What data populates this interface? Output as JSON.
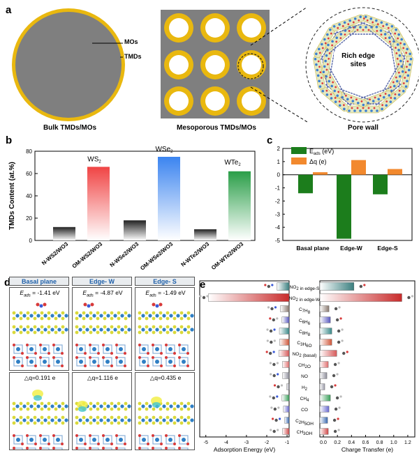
{
  "panel_a": {
    "label": "a",
    "bulk_label_mos": "MOs",
    "bulk_label_tmds": "TMDs",
    "caption_bulk": "Bulk TMDs/MOs",
    "caption_meso": "Mesoporous TMDs/MOs",
    "caption_pore": "Pore wall",
    "rich_edge_text": "Rich edge sites",
    "colors": {
      "gold": "#e9b80f",
      "gray": "#7f7f7f"
    }
  },
  "panel_b": {
    "label": "b",
    "chart_data": {
      "type": "bar",
      "ylabel": "TMDs Content (at.%)",
      "ylim": [
        0,
        80
      ],
      "yticks": [
        "0",
        "20",
        "40",
        "60",
        "80"
      ],
      "categories": [
        "N-WS2/WO3",
        "OM-WS2/WO3",
        "N-WSe2/WO3",
        "OM-WSe2/WO3",
        "N-WTe2/WO3",
        "OM-WTe2/WO3"
      ],
      "values": [
        12,
        66,
        18,
        75,
        10,
        62
      ],
      "group_labels": [
        "WS2",
        "WSe2",
        "WTe2"
      ],
      "bar_colors": [
        "#222222",
        "#f04444",
        "#222222",
        "#3b84f0",
        "#222222",
        "#2a9e48"
      ]
    }
  },
  "panel_c": {
    "label": "c",
    "chart_data": {
      "type": "bar",
      "categories": [
        "Basal plane",
        "Edge-W",
        "Edge-S"
      ],
      "series": [
        {
          "name": "Eads (eV)",
          "values": [
            -1.41,
            -4.87,
            -1.49
          ],
          "color": "#1c7d1c"
        },
        {
          "name": "Δq (e)",
          "values": [
            0.191,
            1.116,
            0.435
          ],
          "color": "#f2892e"
        }
      ],
      "ylim": [
        -5,
        2
      ],
      "yticks": [
        "2",
        "1",
        "0",
        "-1",
        "-2",
        "-3",
        "-4",
        "-5"
      ]
    }
  },
  "panel_d": {
    "label": "d",
    "columns": [
      "Basal plane",
      "Edge- W",
      "Edge- S"
    ],
    "eads_prefix": "E",
    "eads_sub": "ads",
    "eads": [
      "= -1.41 eV",
      "= -4.87 eV",
      "= -1.49 eV"
    ],
    "dq": [
      "△q=0.191 e",
      "△q=1.116 e",
      "△q=0.435 e"
    ]
  },
  "panel_e": {
    "label": "e",
    "chart_data": {
      "type": "bar",
      "orientation": "horizontal",
      "categories": [
        "NO2 in edge-S",
        "NO2 in edge-W",
        "C7H8",
        "C6H6",
        "C8H8",
        "C3H6O",
        "NO2 (basal)",
        "CH2O",
        "NO",
        "H2",
        "CH4",
        "CO",
        "C2H5OH",
        "CH3OH"
      ],
      "series": [
        {
          "name": "Adsorption Energy (eV)",
          "values": [
            -1.49,
            -4.87,
            -1.33,
            -1.25,
            -1.38,
            -1.37,
            -1.41,
            -1.23,
            -1.22,
            -1.02,
            -1.25,
            -1.18,
            -1.12,
            -1.22
          ]
        },
        {
          "name": "Charge Transfer (e)",
          "values": [
            0.435,
            1.116,
            0.08,
            0.1,
            0.12,
            0.12,
            0.191,
            0.07,
            0.05,
            0.02,
            0.1,
            0.08,
            0.06,
            0.07
          ]
        }
      ],
      "xlabel_left": "Adsorption Energy (eV)",
      "xlabel_right": "Charge Transfer (e)",
      "xticks_left": [
        "-5",
        "-4",
        "-3",
        "-2",
        "-1"
      ],
      "xticks_right": [
        "0.0",
        "0.2",
        "0.4",
        "0.6",
        "0.8",
        "1.0",
        "1.2"
      ],
      "colors": [
        "#3a7f7f",
        "#c92b2b",
        "#8a7a70",
        "#5a5ac0",
        "#3a8a8a",
        "#d0573a",
        "#d65a5a",
        "#e07070",
        "#8e8e9a",
        "#9a9aa8",
        "#3aa05a",
        "#6a6ad0",
        "#3a6ab0",
        "#d04a4a"
      ]
    }
  }
}
